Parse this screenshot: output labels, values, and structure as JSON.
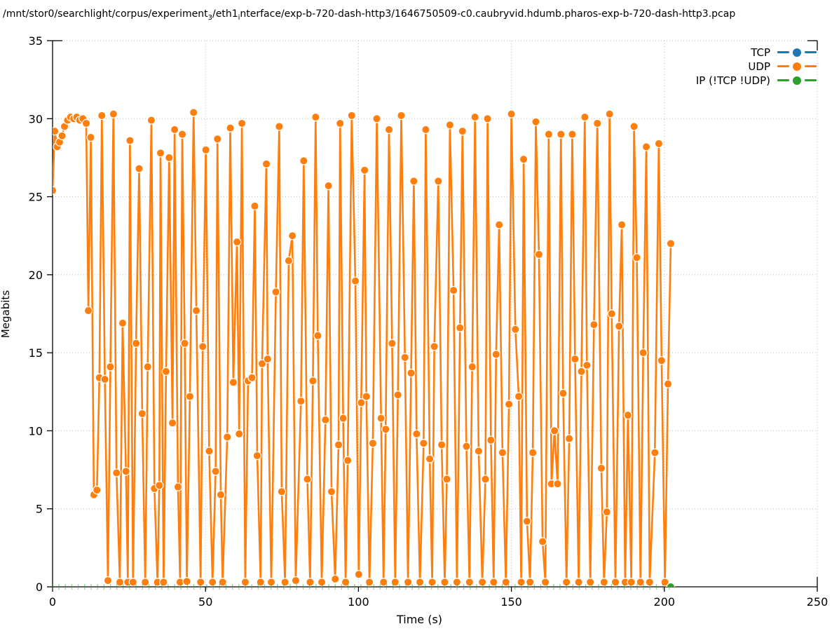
{
  "title": {
    "part1": "/mnt/stor0/searchlight/corpus/experiment",
    "sub1": "3",
    "part2": "/eth1",
    "sub2": "i",
    "part3": "nterface/exp-b-720-dash-http3/1646750509-c0.caubryvid.hdumb.pharos-exp-b-720-dash-http3.pcap"
  },
  "axes": {
    "x": {
      "label": "Time (s)",
      "min": 0,
      "max": 250,
      "ticks": [
        0,
        50,
        100,
        150,
        200,
        250
      ]
    },
    "y": {
      "label": "Megabits",
      "min": 0,
      "max": 35,
      "ticks": [
        0,
        5,
        10,
        15,
        20,
        25,
        30,
        35
      ]
    }
  },
  "legend": {
    "items": [
      {
        "label": "TCP",
        "color": "#1f77b4"
      },
      {
        "label": "UDP",
        "color": "#ff7f0e"
      },
      {
        "label": "IP (!TCP  !UDP)",
        "color": "#2ca02c"
      }
    ]
  },
  "colors": {
    "grid": "#bbbbbb",
    "axis": "#000000",
    "background": "#ffffff",
    "tcp": "#1f77b4",
    "udp": "#ff7f0e",
    "ip": "#2ca02c"
  },
  "chart_data": {
    "type": "line",
    "title": "/mnt/stor0/searchlight/corpus/experiment_3/eth1_interface/exp-b-720-dash-http3/1646750509-c0.caubryvid.hdumb.pharos-exp-b-720-dash-http3.pcap",
    "xlabel": "Time (s)",
    "ylabel": "Megabits",
    "xlim": [
      0,
      250
    ],
    "ylim": [
      0,
      35
    ],
    "grid": true,
    "legend_position": "top-right-inside",
    "series": [
      {
        "name": "TCP",
        "color": "#1f77b4",
        "points": []
      },
      {
        "name": "UDP",
        "color": "#ff7f0e",
        "points": [
          [
            0,
            25.4
          ],
          [
            0.7,
            29.2
          ],
          [
            1.5,
            28.2
          ],
          [
            2.3,
            28.5
          ],
          [
            3.1,
            28.9
          ],
          [
            3.9,
            29.5
          ],
          [
            4.9,
            29.9
          ],
          [
            5.9,
            30.1
          ],
          [
            6.9,
            30.0
          ],
          [
            7.9,
            30.1
          ],
          [
            8.9,
            29.9
          ],
          [
            9.9,
            30.0
          ],
          [
            11,
            29.7
          ],
          [
            11.7,
            17.7
          ],
          [
            12.5,
            28.8
          ],
          [
            13.5,
            5.9
          ],
          [
            14.5,
            6.2
          ],
          [
            15.3,
            13.4
          ],
          [
            16.1,
            30.2
          ],
          [
            17.1,
            13.3
          ],
          [
            18.1,
            0.4
          ],
          [
            18.9,
            14.1
          ],
          [
            19.9,
            30.3
          ],
          [
            20.9,
            7.3
          ],
          [
            22,
            0.3
          ],
          [
            22.9,
            16.9
          ],
          [
            24,
            7.4
          ],
          [
            24.6,
            0.3
          ],
          [
            25.3,
            28.6
          ],
          [
            26.3,
            0.3
          ],
          [
            27.3,
            15.6
          ],
          [
            28.3,
            26.8
          ],
          [
            29.3,
            11.1
          ],
          [
            30.3,
            0.3
          ],
          [
            31.1,
            14.1
          ],
          [
            32.3,
            29.9
          ],
          [
            33.3,
            6.3
          ],
          [
            34.3,
            0.3
          ],
          [
            34.9,
            6.5
          ],
          [
            35.3,
            27.8
          ],
          [
            36.3,
            0.3
          ],
          [
            37.1,
            13.8
          ],
          [
            38.1,
            27.5
          ],
          [
            39.2,
            10.5
          ],
          [
            39.9,
            29.3
          ],
          [
            41,
            6.4
          ],
          [
            41.7,
            0.3
          ],
          [
            42.4,
            29.0
          ],
          [
            43.2,
            15.6
          ],
          [
            43.9,
            0.35
          ],
          [
            44.9,
            12.2
          ],
          [
            46.1,
            30.4
          ],
          [
            47,
            17.7
          ],
          [
            48.4,
            0.3
          ],
          [
            49.1,
            15.4
          ],
          [
            50.1,
            28.0
          ],
          [
            51.2,
            8.7
          ],
          [
            52.3,
            0.3
          ],
          [
            53.3,
            7.4
          ],
          [
            53.9,
            28.7
          ],
          [
            55,
            5.9
          ],
          [
            55.6,
            0.3
          ],
          [
            57.1,
            9.6
          ],
          [
            58.1,
            29.4
          ],
          [
            59.1,
            13.1
          ],
          [
            60.3,
            22.1
          ],
          [
            61,
            9.8
          ],
          [
            61.9,
            29.7
          ],
          [
            63,
            0.3
          ],
          [
            63.9,
            13.2
          ],
          [
            65.2,
            13.4
          ],
          [
            66.1,
            24.4
          ],
          [
            66.9,
            8.4
          ],
          [
            68,
            0.3
          ],
          [
            68.5,
            14.3
          ],
          [
            69.9,
            27.1
          ],
          [
            70.3,
            14.6
          ],
          [
            71.5,
            0.3
          ],
          [
            73,
            18.9
          ],
          [
            74.1,
            29.5
          ],
          [
            74.9,
            6.1
          ],
          [
            76,
            0.3
          ],
          [
            77.2,
            20.9
          ],
          [
            78.4,
            22.5
          ],
          [
            79.5,
            0.4
          ],
          [
            81.2,
            11.9
          ],
          [
            82.1,
            27.3
          ],
          [
            83.3,
            6.9
          ],
          [
            84.2,
            0.3
          ],
          [
            85.1,
            13.2
          ],
          [
            86,
            30.1
          ],
          [
            86.7,
            16.1
          ],
          [
            88,
            0.3
          ],
          [
            89.2,
            10.7
          ],
          [
            90.2,
            25.7
          ],
          [
            91.2,
            6.1
          ],
          [
            92.4,
            0.5
          ],
          [
            93.5,
            9.1
          ],
          [
            94,
            29.7
          ],
          [
            95,
            10.8
          ],
          [
            95.8,
            0.3
          ],
          [
            96.5,
            8.1
          ],
          [
            97.8,
            30.2
          ],
          [
            99,
            19.6
          ],
          [
            100.1,
            0.8
          ],
          [
            100.9,
            11.8
          ],
          [
            102,
            26.7
          ],
          [
            102.6,
            12.2
          ],
          [
            103.6,
            0.3
          ],
          [
            104.7,
            9.2
          ],
          [
            106,
            30.0
          ],
          [
            107.4,
            10.8
          ],
          [
            108.2,
            0.3
          ],
          [
            108.9,
            10.1
          ],
          [
            110,
            29.3
          ],
          [
            111,
            15.6
          ],
          [
            112,
            0.3
          ],
          [
            112.9,
            12.3
          ],
          [
            114,
            30.2
          ],
          [
            115.2,
            14.7
          ],
          [
            116.2,
            0.3
          ],
          [
            117.2,
            13.7
          ],
          [
            118.1,
            26.0
          ],
          [
            119,
            9.8
          ],
          [
            120.1,
            0.3
          ],
          [
            121.3,
            9.2
          ],
          [
            122,
            29.3
          ],
          [
            123.3,
            8.2
          ],
          [
            124.1,
            0.3
          ],
          [
            124.8,
            15.4
          ],
          [
            126.1,
            26.0
          ],
          [
            127.2,
            9.1
          ],
          [
            128.2,
            0.3
          ],
          [
            128.9,
            6.9
          ],
          [
            129.9,
            29.6
          ],
          [
            131.1,
            19.0
          ],
          [
            132.2,
            0.3
          ],
          [
            133.2,
            16.6
          ],
          [
            134,
            29.2
          ],
          [
            135.3,
            9.0
          ],
          [
            136.3,
            0.3
          ],
          [
            137.2,
            14.1
          ],
          [
            138.1,
            30.1
          ],
          [
            139.3,
            8.7
          ],
          [
            140.5,
            0.3
          ],
          [
            141.5,
            6.9
          ],
          [
            142.2,
            30.0
          ],
          [
            143.3,
            9.4
          ],
          [
            144.2,
            0.3
          ],
          [
            145,
            14.9
          ],
          [
            146,
            23.2
          ],
          [
            147.1,
            8.6
          ],
          [
            148.2,
            0.3
          ],
          [
            149.2,
            11.7
          ],
          [
            150,
            30.3
          ],
          [
            151.3,
            16.5
          ],
          [
            152.4,
            12.2
          ],
          [
            153.2,
            0.3
          ],
          [
            154,
            27.4
          ],
          [
            155.1,
            4.2
          ],
          [
            156.1,
            0.3
          ],
          [
            157,
            8.6
          ],
          [
            158,
            29.8
          ],
          [
            159,
            21.3
          ],
          [
            160.2,
            2.9
          ],
          [
            161.1,
            0.3
          ],
          [
            162.2,
            29.0
          ],
          [
            163.1,
            6.6
          ],
          [
            164.1,
            10.0
          ],
          [
            165.1,
            6.6
          ],
          [
            166.2,
            29.0
          ],
          [
            166.9,
            12.4
          ],
          [
            168,
            0.3
          ],
          [
            168.9,
            9.5
          ],
          [
            169.9,
            29.0
          ],
          [
            170.8,
            14.6
          ],
          [
            172,
            0.3
          ],
          [
            172.9,
            13.8
          ],
          [
            174,
            30.1
          ],
          [
            174.7,
            14.2
          ],
          [
            175.8,
            0.3
          ],
          [
            177,
            16.8
          ],
          [
            178.1,
            29.7
          ],
          [
            179.4,
            7.6
          ],
          [
            180.3,
            0.3
          ],
          [
            181.2,
            4.8
          ],
          [
            182.1,
            30.3
          ],
          [
            182.8,
            17.5
          ],
          [
            184,
            0.3
          ],
          [
            185.2,
            16.7
          ],
          [
            186.1,
            23.2
          ],
          [
            187.2,
            0.3
          ],
          [
            188.1,
            11.0
          ],
          [
            189.2,
            0.3
          ],
          [
            190.1,
            29.5
          ],
          [
            191,
            21.1
          ],
          [
            192.2,
            0.3
          ],
          [
            193.1,
            15.0
          ],
          [
            194.1,
            28.2
          ],
          [
            195.2,
            0.3
          ],
          [
            196.9,
            8.6
          ],
          [
            198.2,
            28.4
          ],
          [
            199.1,
            14.5
          ],
          [
            200.2,
            0.3
          ],
          [
            201.2,
            13.0
          ],
          [
            202.1,
            22.0
          ]
        ]
      },
      {
        "name": "IP (!TCP  !UDP)",
        "color": "#2ca02c",
        "points": [
          [
            202.1,
            0
          ]
        ],
        "baseline_ticks": {
          "start": 0,
          "end": 202,
          "step": 2.1,
          "value": 0
        }
      }
    ]
  }
}
